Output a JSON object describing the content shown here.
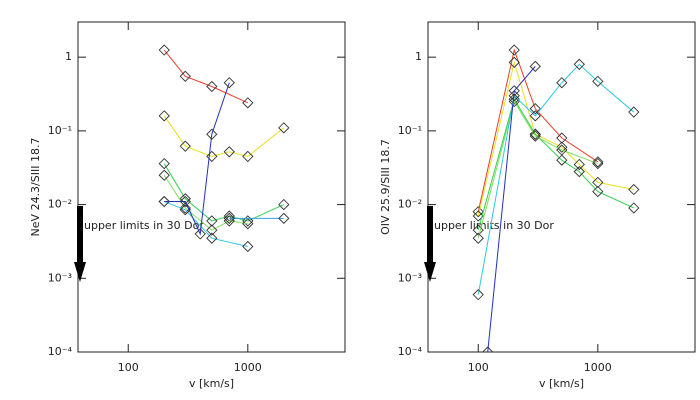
{
  "chart_data": [
    {
      "type": "line",
      "xlabel": "v [km/s]",
      "ylabel": "NeV 24.3/SIII 18.7",
      "xscale": "log",
      "yscale": "log",
      "xlim": [
        38,
        6500
      ],
      "ylim": [
        0.0001,
        3
      ],
      "xticks": [
        100,
        1000
      ],
      "yticks": [
        {
          "value": 0.0001,
          "label": "10⁻⁴"
        },
        {
          "value": 0.001,
          "label": "10⁻³"
        },
        {
          "value": 0.01,
          "label": "10⁻²"
        },
        {
          "value": 0.1,
          "label": "10⁻¹"
        },
        1
      ],
      "annotation": "upper limits in 30 Dor",
      "series": [
        {
          "color": "#e8402a",
          "x": [
            200,
            300,
            500,
            1000
          ],
          "values": [
            1.25,
            0.55,
            0.4,
            0.24
          ]
        },
        {
          "color": "#e8e020",
          "x": [
            200,
            300,
            500,
            700,
            1000,
            2000
          ],
          "values": [
            0.16,
            0.062,
            0.045,
            0.052,
            0.045,
            0.11
          ]
        },
        {
          "color": "#30d050",
          "x": [
            200,
            300,
            500,
            700,
            1000,
            2000
          ],
          "values": [
            0.036,
            0.012,
            0.006,
            0.007,
            0.006,
            0.01
          ]
        },
        {
          "color": "#80e060",
          "x": [
            200,
            300,
            500,
            700,
            1000
          ],
          "values": [
            0.025,
            0.009,
            0.0045,
            0.006,
            0.0055
          ]
        },
        {
          "color": "#30c8e0",
          "x": [
            200,
            300,
            500,
            1000
          ],
          "values": [
            0.011,
            0.0085,
            0.0035,
            0.0027
          ]
        },
        {
          "color": "#2030c0",
          "x": [
            200,
            300,
            400,
            500,
            700
          ],
          "values": [
            0.011,
            0.011,
            0.004,
            0.09,
            0.45
          ]
        },
        {
          "color": "#30a0e0",
          "x": [
            700,
            2000
          ],
          "values": [
            0.0065,
            0.0065
          ]
        }
      ]
    },
    {
      "type": "line",
      "xlabel": "v [km/s]",
      "ylabel": "OIV 25.9/SIII 18.7",
      "xscale": "log",
      "yscale": "log",
      "xlim": [
        38,
        6500
      ],
      "ylim": [
        0.0001,
        3
      ],
      "xticks": [
        100,
        1000
      ],
      "yticks": [
        {
          "value": 0.0001,
          "label": "10⁻⁴"
        },
        {
          "value": 0.001,
          "label": "10⁻³"
        },
        {
          "value": 0.01,
          "label": "10⁻²"
        },
        {
          "value": 0.1,
          "label": "10⁻¹"
        },
        1
      ],
      "annotation": "upper limits in 30 Dor",
      "series": [
        {
          "color": "#e8402a",
          "x": [
            100,
            200,
            300,
            500,
            1000
          ],
          "values": [
            0.008,
            1.25,
            0.2,
            0.08,
            0.038
          ]
        },
        {
          "color": "#e8e020",
          "x": [
            100,
            200,
            300,
            500,
            700,
            1000,
            2000
          ],
          "values": [
            0.007,
            0.85,
            0.09,
            0.06,
            0.035,
            0.02,
            0.016
          ]
        },
        {
          "color": "#30d050",
          "x": [
            100,
            200,
            300,
            500,
            700,
            1000,
            2000
          ],
          "values": [
            0.0045,
            0.27,
            0.09,
            0.04,
            0.028,
            0.015,
            0.009
          ]
        },
        {
          "color": "#80e060",
          "x": [
            100,
            200,
            300,
            500,
            1000
          ],
          "values": [
            0.0035,
            0.25,
            0.085,
            0.055,
            0.036
          ]
        },
        {
          "color": "#30c8e0",
          "x": [
            100,
            200,
            300,
            500,
            700,
            1000,
            2000
          ],
          "values": [
            0.0006,
            0.3,
            0.16,
            0.45,
            0.8,
            0.47,
            0.18
          ]
        },
        {
          "color": "#2030c0",
          "x": [
            120,
            200,
            300
          ],
          "values": [
            0.0001,
            0.35,
            0.75
          ]
        }
      ]
    }
  ]
}
